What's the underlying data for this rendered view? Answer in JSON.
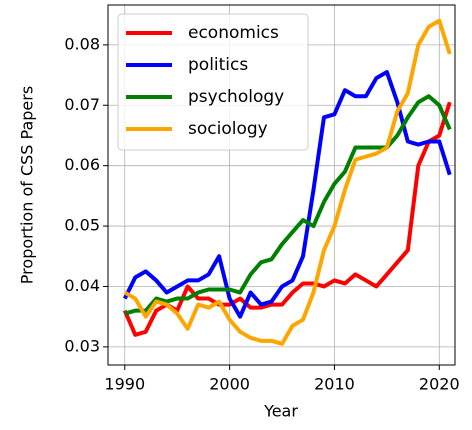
{
  "chart_data": {
    "type": "line",
    "xlabel": "Year",
    "ylabel": "Proportion of CSS Papers",
    "x": [
      1990,
      1991,
      1992,
      1993,
      1994,
      1995,
      1996,
      1997,
      1998,
      1999,
      2000,
      2001,
      2002,
      2003,
      2004,
      2005,
      2006,
      2007,
      2008,
      2009,
      2010,
      2011,
      2012,
      2013,
      2014,
      2015,
      2016,
      2017,
      2018,
      2019,
      2020,
      2021
    ],
    "series": [
      {
        "name": "economics",
        "color": "#ff0000",
        "values": [
          0.036,
          0.032,
          0.0325,
          0.036,
          0.037,
          0.036,
          0.04,
          0.038,
          0.038,
          0.037,
          0.037,
          0.038,
          0.0365,
          0.0365,
          0.037,
          0.037,
          0.039,
          0.0405,
          0.0405,
          0.04,
          0.041,
          0.0405,
          0.042,
          0.041,
          0.04,
          0.042,
          0.044,
          0.046,
          0.06,
          0.064,
          0.065,
          0.0705
        ]
      },
      {
        "name": "politics",
        "color": "#0000ff",
        "values": [
          0.038,
          0.0415,
          0.0425,
          0.041,
          0.039,
          0.04,
          0.041,
          0.041,
          0.042,
          0.045,
          0.038,
          0.035,
          0.039,
          0.037,
          0.0375,
          0.04,
          0.041,
          0.045,
          0.056,
          0.068,
          0.0685,
          0.0725,
          0.0715,
          0.0715,
          0.0745,
          0.0755,
          0.0705,
          0.064,
          0.0635,
          0.064,
          0.064,
          0.0585
        ]
      },
      {
        "name": "psychology",
        "color": "#008000",
        "values": [
          0.0355,
          0.036,
          0.036,
          0.038,
          0.0375,
          0.038,
          0.038,
          0.039,
          0.0395,
          0.0395,
          0.0395,
          0.039,
          0.042,
          0.044,
          0.0445,
          0.047,
          0.049,
          0.051,
          0.05,
          0.054,
          0.057,
          0.059,
          0.063,
          0.063,
          0.063,
          0.063,
          0.065,
          0.068,
          0.0705,
          0.0715,
          0.07,
          0.066
        ]
      },
      {
        "name": "sociology",
        "color": "#ffa500",
        "values": [
          0.039,
          0.038,
          0.035,
          0.0375,
          0.037,
          0.0355,
          0.033,
          0.037,
          0.0365,
          0.0375,
          0.0345,
          0.0325,
          0.0315,
          0.031,
          0.031,
          0.0305,
          0.0335,
          0.0345,
          0.039,
          0.046,
          0.05,
          0.056,
          0.061,
          0.0615,
          0.062,
          0.063,
          0.069,
          0.072,
          0.08,
          0.083,
          0.084,
          0.0785
        ]
      }
    ],
    "xlim": [
      1988.4,
      2021.5
    ],
    "ylim": [
      0.027,
      0.0866
    ],
    "xticks": [
      1990,
      2000,
      2010,
      2020
    ],
    "yticks": [
      0.03,
      0.04,
      0.05,
      0.06,
      0.07,
      0.08
    ],
    "grid": true,
    "legend": "upper-left"
  }
}
